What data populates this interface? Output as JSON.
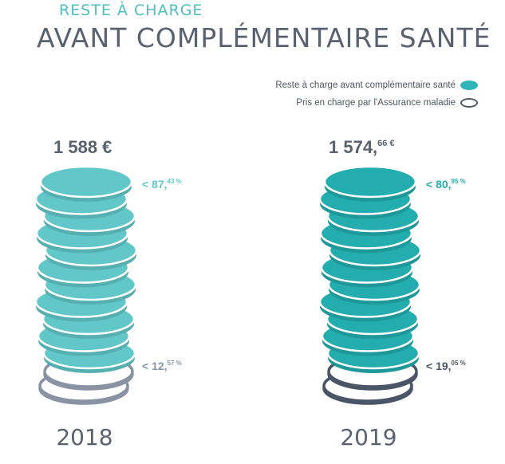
{
  "header": {
    "subtitle": "RESTE À CHARGE",
    "title": "AVANT COMPLÉMENTAIRE SANTÉ"
  },
  "legend": {
    "items": [
      {
        "label": "Reste à charge avant complémentaire santé",
        "style": "filled"
      },
      {
        "label": "Pris en charge par l'Assurance maladie",
        "style": "outline"
      }
    ]
  },
  "colors": {
    "teal_2018": "#62c7c8",
    "teal_2019": "#23adae",
    "ring_2018": "#8a93a3",
    "ring_2019": "#4a5568",
    "text_dark": "#5a6270"
  },
  "chart_data": {
    "type": "pictogram-stack",
    "unit": "€",
    "series": [
      {
        "name": "Reste à charge avant complémentaire santé"
      },
      {
        "name": "Pris en charge par l'Assurance maladie"
      }
    ],
    "stacks": [
      {
        "year": "2018",
        "total_main": "1 588 €",
        "total_sup": "",
        "total_value": 1588,
        "reste_a_charge_pct": 87.43,
        "assurance_maladie_pct": 12.57,
        "reste_label_main": "< 87,",
        "reste_label_sup": "43 %",
        "assurance_label_main": "< 12,",
        "assurance_label_sup": "57 %"
      },
      {
        "year": "2019",
        "total_main": "1 574,",
        "total_sup": "66 €",
        "total_value": 1574.66,
        "reste_a_charge_pct": 80.95,
        "assurance_maladie_pct": 19.05,
        "reste_label_main": "< 80,",
        "reste_label_sup": "95 %",
        "assurance_label_main": "< 19,",
        "assurance_label_sup": "05 %"
      }
    ]
  }
}
